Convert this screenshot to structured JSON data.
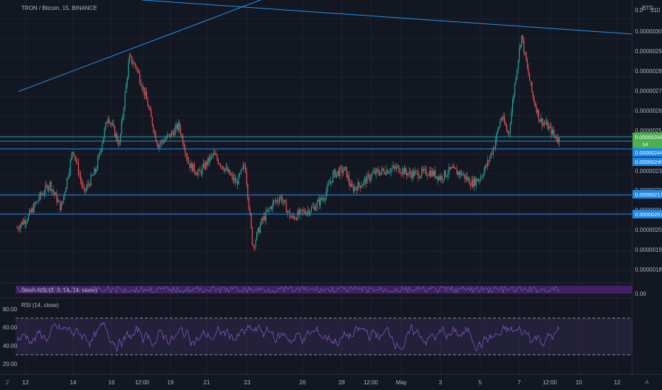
{
  "header": {
    "symbol_title": "TRON / Bitcoin, 15, BINANCE",
    "currency": "BTC"
  },
  "colors": {
    "background": "#131722",
    "grid": "#1e2230",
    "up": "#26a69a",
    "down": "#ef5350",
    "trendline": "#2196f3",
    "hline": "#2196f3",
    "price_tag": "#4caf50",
    "level_tag": "#1e88e5",
    "rsi_line": "#7e57c2",
    "rsi_band": "rgba(126,87,194,0.15)",
    "stoch_band": "#4a1f6e"
  },
  "price_axis": {
    "labels": [
      "0.0",
      "0.00000300",
      "0.00000290",
      "0.00000280",
      "0.00000270",
      "0.00000260",
      "0.00000250",
      "0.00000230",
      "0.00000220",
      "0.00000210",
      "0.00000200",
      "0.00000190",
      "0.00000180"
    ],
    "top_label_extra": "310",
    "price_tags": [
      {
        "label": "0.00000248",
        "kind": "last"
      },
      {
        "label": "0.00000244",
        "kind": "level"
      },
      {
        "label": "0.00000240",
        "kind": "level"
      },
      {
        "label": "0.00000217",
        "kind": "level"
      },
      {
        "label": "0.00000207",
        "kind": "level"
      }
    ],
    "countdown_tag": "14"
  },
  "stoch_panel": {
    "label": "Stoch RSI (3, 3, 14, 14, close)",
    "axis_label": "0.00"
  },
  "rsi_panel": {
    "label": "RSI (14, close)",
    "axis_labels": [
      "80.00",
      "60.00",
      "40.00",
      "20.00"
    ]
  },
  "time_axis": {
    "labels": [
      "12",
      "14",
      "16",
      "12:00",
      "19",
      "21",
      "23",
      "26",
      "28",
      "12:00",
      "May",
      "3",
      "5",
      "7",
      "12:00",
      "10",
      "12"
    ]
  },
  "corner_buttons": {
    "left": "Z",
    "right": "A"
  },
  "chart_data": {
    "type": "candlestick",
    "title": "TRON / Bitcoin, 15, BINANCE",
    "ylabel": "BTC",
    "ylim": [
      1.75e-06,
      3.18e-06
    ],
    "horizontal_levels": [
      2.48e-06,
      2.44e-06,
      2.4e-06,
      2.17e-06,
      2.07e-06
    ],
    "price_path_keypoints": [
      {
        "x": "start",
        "close": 2.02e-06
      },
      {
        "x": "near 12",
        "close": 2.18e-06
      },
      {
        "x": "14",
        "close": 2.43e-06
      },
      {
        "x": "before 16",
        "close": 2.58e-06
      },
      {
        "x": "16 / 12:00",
        "close": 2.9e-06
      },
      {
        "x": "19",
        "close": 2.62e-06
      },
      {
        "x": "21",
        "close": 2.38e-06
      },
      {
        "x": "23",
        "close": 1.92e-06
      },
      {
        "x": "23-26",
        "close": 2.16e-06
      },
      {
        "x": "26",
        "close": 2.1e-06
      },
      {
        "x": "28",
        "close": 2.28e-06
      },
      {
        "x": "12:00 (28)",
        "close": 2.3e-06
      },
      {
        "x": "May",
        "close": 2.3e-06
      },
      {
        "x": "3",
        "close": 2.28e-06
      },
      {
        "x": "5",
        "close": 2.28e-06
      },
      {
        "x": "after 5",
        "close": 2.45e-06
      },
      {
        "x": "7",
        "close": 3e-06
      },
      {
        "x": "after 7",
        "close": 2.6e-06
      },
      {
        "x": "12:00 (7)",
        "close": 2.48e-06
      }
    ],
    "rsi": {
      "name": "RSI (14, close)",
      "ylim": [
        10,
        90
      ],
      "bands": [
        70,
        30
      ],
      "range_observed": [
        22,
        78
      ]
    },
    "stoch_rsi": {
      "name": "Stoch RSI (3, 3, 14, 14, close)"
    }
  }
}
